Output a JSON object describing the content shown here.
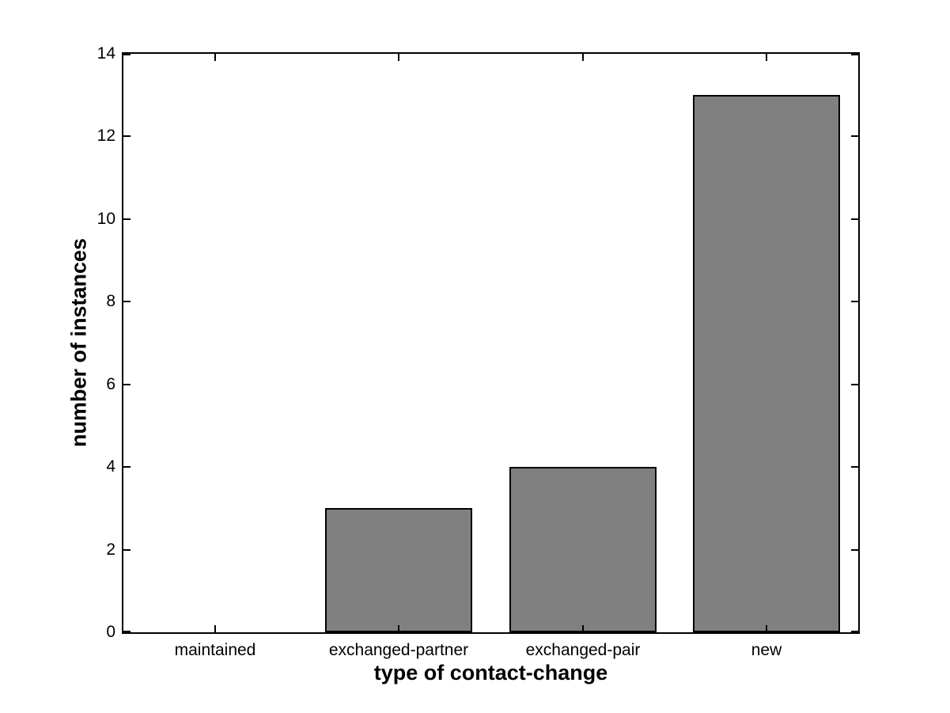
{
  "chart_data": {
    "type": "bar",
    "categories": [
      "maintained",
      "exchanged-partner",
      "exchanged-pair",
      "new"
    ],
    "values": [
      0,
      3,
      4,
      13
    ],
    "title": "",
    "xlabel": "type of contact-change",
    "ylabel": "number of instances",
    "ylim": [
      0,
      14
    ],
    "yticks": [
      0,
      2,
      4,
      6,
      8,
      10,
      12,
      14
    ],
    "grid": false,
    "legend": null,
    "bar_width_fraction": 0.8,
    "colors": {
      "bar_fill": "#808080",
      "bar_edge": "#000000",
      "axis": "#000000",
      "background": "#ffffff",
      "text": "#000000"
    }
  }
}
